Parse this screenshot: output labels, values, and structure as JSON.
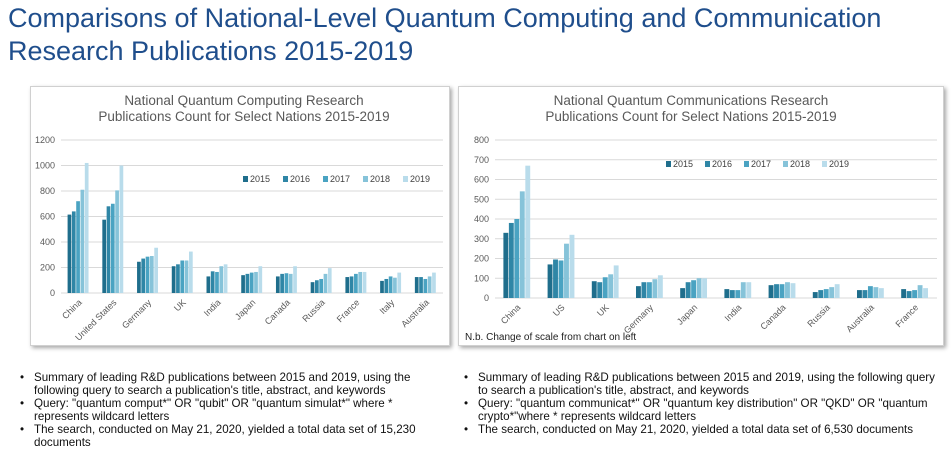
{
  "slide": {
    "title": "Comparisons of National-Level Quantum Computing and Communication Research Publications 2015-2019"
  },
  "chart_data": [
    {
      "type": "bar",
      "title": "National Quantum Computing Research Publications Count for Select Nations 2015-2019",
      "xlabel": "",
      "ylabel": "",
      "ylim": [
        0,
        1200
      ],
      "yticks": [
        0,
        200,
        400,
        600,
        800,
        1000,
        1200
      ],
      "grid": true,
      "legend_position": "top-right",
      "categories": [
        "China",
        "United States",
        "Germany",
        "UK",
        "India",
        "Japan",
        "Canada",
        "Russia",
        "France",
        "Italy",
        "Australia"
      ],
      "series": [
        {
          "name": "2015",
          "color": "#1f6e8c",
          "values": [
            615,
            575,
            245,
            210,
            130,
            140,
            130,
            85,
            125,
            95,
            125
          ]
        },
        {
          "name": "2016",
          "color": "#2f86a6",
          "values": [
            640,
            680,
            270,
            225,
            170,
            150,
            150,
            100,
            130,
            110,
            125
          ]
        },
        {
          "name": "2017",
          "color": "#4aa3c2",
          "values": [
            720,
            700,
            285,
            255,
            165,
            160,
            155,
            110,
            150,
            130,
            110
          ]
        },
        {
          "name": "2018",
          "color": "#86c3d9",
          "values": [
            810,
            805,
            290,
            255,
            210,
            165,
            150,
            150,
            165,
            120,
            130
          ]
        },
        {
          "name": "2019",
          "color": "#b9dceb",
          "values": [
            1020,
            1000,
            355,
            325,
            225,
            210,
            210,
            195,
            165,
            160,
            160
          ]
        }
      ]
    },
    {
      "type": "bar",
      "title": "National Quantum Communications Research Publications Count for Select Nations 2015-2019",
      "xlabel": "",
      "ylabel": "",
      "ylim": [
        0,
        800
      ],
      "yticks": [
        0,
        100,
        200,
        300,
        400,
        500,
        600,
        700,
        800
      ],
      "grid": true,
      "legend_position": "top-right",
      "categories": [
        "China",
        "US",
        "UK",
        "Germany",
        "Japan",
        "India",
        "Canada",
        "Russia",
        "Australia",
        "France"
      ],
      "series": [
        {
          "name": "2015",
          "color": "#1f6e8c",
          "values": [
            330,
            170,
            85,
            60,
            50,
            45,
            65,
            30,
            40,
            45
          ]
        },
        {
          "name": "2016",
          "color": "#2f86a6",
          "values": [
            380,
            195,
            80,
            80,
            80,
            40,
            70,
            40,
            40,
            35
          ]
        },
        {
          "name": "2017",
          "color": "#4aa3c2",
          "values": [
            400,
            190,
            105,
            80,
            90,
            40,
            70,
            45,
            60,
            40
          ]
        },
        {
          "name": "2018",
          "color": "#86c3d9",
          "values": [
            540,
            275,
            120,
            95,
            100,
            80,
            80,
            55,
            55,
            65
          ]
        },
        {
          "name": "2019",
          "color": "#b9dceb",
          "values": [
            670,
            320,
            165,
            115,
            100,
            80,
            75,
            70,
            50,
            50
          ]
        }
      ],
      "note": "N.b. Change of scale from chart on left"
    }
  ],
  "bullets_left": [
    "Summary of leading R&D publications between 2015 and 2019, using the following query to search a publication's title, abstract, and keywords",
    "Query: \"quantum comput*\" OR \"qubit\" OR \"quantum simulat*\" where * represents wildcard letters",
    "The search, conducted on May 21, 2020, yielded a total data set of 15,230 documents"
  ],
  "bullets_right": [
    "Summary of leading R&D publications between 2015 and 2019, using the following query to search a publication's title, abstract, and keywords",
    "Query: \"quantum communicat*\" OR \"quantum key distribution\" OR \"QKD\" OR \"quantum crypto*\"where * represents wildcard letters",
    "The search, conducted on May 21, 2020, yielded a total data set of 6,530 documents"
  ]
}
